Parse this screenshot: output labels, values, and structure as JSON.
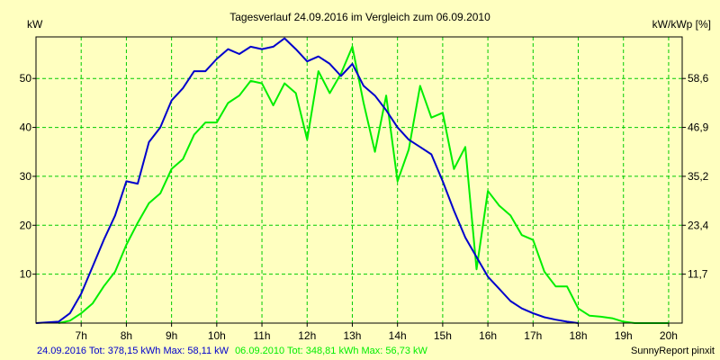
{
  "colors": {
    "background": "#ffffc0",
    "grid": "#00cc00",
    "series_2016": "#0000cc",
    "series_2010": "#00ee00",
    "frame": "#000000"
  },
  "chart_data": {
    "type": "line",
    "title": "Tagesverlauf 24.09.2016 im Vergleich zum 06.09.2010",
    "ylabel_left": "kW",
    "ylabel_right": "kW/kWp [%]",
    "xlim": [
      6.0,
      20.3
    ],
    "ylim": [
      0,
      58.5
    ],
    "x_ticks": [
      7,
      8,
      9,
      10,
      11,
      12,
      13,
      14,
      15,
      16,
      17,
      18,
      19,
      20
    ],
    "x_tick_labels": [
      "7h",
      "8h",
      "9h",
      "10h",
      "11h",
      "12h",
      "13h",
      "14h",
      "15h",
      "16h",
      "17h",
      "18h",
      "19h",
      "20h"
    ],
    "y_left_ticks": [
      10,
      20,
      30,
      40,
      50
    ],
    "y_left_tick_labels": [
      "10",
      "20",
      "30",
      "40",
      "50"
    ],
    "y_right_ticks": [
      10,
      20,
      30,
      40,
      50
    ],
    "y_right_tick_labels": [
      "11,7",
      "23,4",
      "35,2",
      "46,9",
      "58,6"
    ],
    "grid": true,
    "series": [
      {
        "name": "24.09.2016",
        "color": "#0000cc",
        "points": [
          [
            6.0,
            0
          ],
          [
            6.5,
            0.3
          ],
          [
            6.75,
            2
          ],
          [
            7.0,
            6
          ],
          [
            7.25,
            11.5
          ],
          [
            7.5,
            17
          ],
          [
            7.75,
            22
          ],
          [
            8.0,
            29
          ],
          [
            8.25,
            28.5
          ],
          [
            8.5,
            37
          ],
          [
            8.75,
            40
          ],
          [
            9.0,
            45.5
          ],
          [
            9.25,
            48
          ],
          [
            9.5,
            51.5
          ],
          [
            9.75,
            51.5
          ],
          [
            10.0,
            54
          ],
          [
            10.25,
            56
          ],
          [
            10.5,
            55
          ],
          [
            10.75,
            56.5
          ],
          [
            11.0,
            56
          ],
          [
            11.25,
            56.5
          ],
          [
            11.5,
            58.2
          ],
          [
            11.75,
            56
          ],
          [
            12.0,
            53.5
          ],
          [
            12.25,
            54.5
          ],
          [
            12.5,
            53
          ],
          [
            12.75,
            50.5
          ],
          [
            13.0,
            53
          ],
          [
            13.25,
            48.5
          ],
          [
            13.5,
            46.5
          ],
          [
            13.75,
            43.5
          ],
          [
            14.0,
            40
          ],
          [
            14.25,
            37.5
          ],
          [
            14.5,
            36
          ],
          [
            14.75,
            34.5
          ],
          [
            15.0,
            29
          ],
          [
            15.25,
            23
          ],
          [
            15.5,
            17.5
          ],
          [
            15.75,
            13.5
          ],
          [
            16.0,
            9.5
          ],
          [
            16.25,
            7
          ],
          [
            16.5,
            4.5
          ],
          [
            16.75,
            3
          ],
          [
            17.0,
            2
          ],
          [
            17.25,
            1.2
          ],
          [
            17.5,
            0.7
          ],
          [
            17.75,
            0.3
          ],
          [
            18.0,
            0
          ]
        ]
      },
      {
        "name": "06.09.2010",
        "color": "#00ee00",
        "points": [
          [
            6.5,
            0
          ],
          [
            6.75,
            0.5
          ],
          [
            7.0,
            2
          ],
          [
            7.25,
            4
          ],
          [
            7.5,
            7.5
          ],
          [
            7.75,
            10.5
          ],
          [
            8.0,
            16
          ],
          [
            8.25,
            20.5
          ],
          [
            8.5,
            24.5
          ],
          [
            8.75,
            26.5
          ],
          [
            9.0,
            31.5
          ],
          [
            9.25,
            33.5
          ],
          [
            9.5,
            38.5
          ],
          [
            9.75,
            41
          ],
          [
            10.0,
            41
          ],
          [
            10.25,
            45
          ],
          [
            10.5,
            46.5
          ],
          [
            10.75,
            49.5
          ],
          [
            11.0,
            49
          ],
          [
            11.25,
            44.5
          ],
          [
            11.5,
            49
          ],
          [
            11.75,
            47
          ],
          [
            12.0,
            37.5
          ],
          [
            12.25,
            51.5
          ],
          [
            12.5,
            47
          ],
          [
            12.75,
            51
          ],
          [
            13.0,
            56.5
          ],
          [
            13.25,
            45
          ],
          [
            13.5,
            35
          ],
          [
            13.75,
            46.5
          ],
          [
            14.0,
            29
          ],
          [
            14.25,
            35.5
          ],
          [
            14.5,
            48.5
          ],
          [
            14.75,
            42
          ],
          [
            15.0,
            43
          ],
          [
            15.25,
            31.5
          ],
          [
            15.5,
            36
          ],
          [
            15.75,
            11
          ],
          [
            16.0,
            27
          ],
          [
            16.25,
            24
          ],
          [
            16.5,
            22
          ],
          [
            16.75,
            18
          ],
          [
            17.0,
            17
          ],
          [
            17.25,
            10.5
          ],
          [
            17.5,
            7.5
          ],
          [
            17.75,
            7.5
          ],
          [
            18.0,
            3
          ],
          [
            18.25,
            1.5
          ],
          [
            18.5,
            1.3
          ],
          [
            18.75,
            1
          ],
          [
            19.0,
            0.3
          ],
          [
            19.25,
            0
          ],
          [
            20.0,
            0
          ]
        ]
      }
    ],
    "legend": {
      "entries": [
        {
          "text": "24.09.2016 Tot: 378,15 kWh Max: 58,11 kW",
          "color": "#0000cc"
        },
        {
          "text": "06.09.2010 Tot: 348,81 kWh Max: 56,73 kW",
          "color": "#00ee00"
        }
      ],
      "placement": "bottom-left"
    },
    "credit": "SunnyReport pinxit"
  }
}
